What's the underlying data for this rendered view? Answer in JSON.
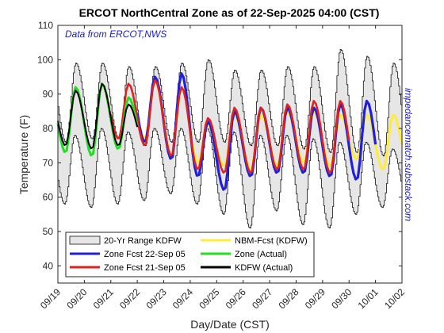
{
  "chart_data": {
    "type": "line",
    "title": "ERCOT NorthCentral Zone as of 22-Sep-2025 04:00 (CST)",
    "xlabel": "Day/Date (CST)",
    "ylabel": "Temperature (F)",
    "ylim": [
      35,
      110
    ],
    "yticks": [
      40,
      50,
      60,
      70,
      80,
      90,
      100,
      110
    ],
    "xlim": [
      0,
      13
    ],
    "xtick_labels": [
      "09/19",
      "09/20",
      "09/21",
      "09/22",
      "09/23",
      "09/24",
      "09/25",
      "09/26",
      "09/27",
      "09/28",
      "09/29",
      "09/30",
      "10/01",
      "10/02"
    ],
    "source_note": "Data from ERCOT,NWS",
    "watermark": "impedancematch.substack.com",
    "legend_position": "bottom-left",
    "grid": false,
    "range_band": {
      "name": "20-Yr Range KDFW",
      "color": "#e6e6e6",
      "days": [
        0,
        1,
        2,
        3,
        4,
        5,
        6,
        7,
        8,
        9,
        10,
        11,
        12
      ],
      "high_max": [
        99,
        99,
        98,
        98,
        99,
        100,
        97,
        97,
        98,
        98,
        103,
        101,
        99
      ],
      "high_min": [
        78,
        80,
        79,
        80,
        80,
        80,
        79,
        78,
        78,
        77,
        76,
        76,
        74
      ],
      "low_max": [
        76,
        77,
        77,
        75,
        76,
        76,
        76,
        75,
        75,
        74,
        73,
        73,
        72
      ],
      "low_min": [
        58,
        57,
        58,
        59,
        61,
        58,
        55,
        51,
        56,
        52,
        51,
        55,
        57
      ]
    },
    "series": [
      {
        "name": "NBM-Fcst (KDFW)",
        "color": "#ffeb3b",
        "days": [
          3,
          4,
          5,
          6,
          7,
          8,
          9,
          10,
          11,
          12
        ],
        "highs": [
          94,
          92,
          81,
          84,
          84,
          85,
          85,
          84,
          84,
          84
        ],
        "lows": [
          77,
          72,
          70,
          69,
          68,
          69,
          70,
          69,
          71,
          68
        ]
      },
      {
        "name": "Zone Fcst 22-Sep 05",
        "color": "#1f1fdc",
        "days": [
          3,
          4,
          5,
          6,
          7,
          8,
          9,
          10,
          11
        ],
        "highs": [
          95,
          96,
          82,
          85,
          86,
          86,
          86,
          87,
          88
        ],
        "lows": [
          76,
          71,
          66,
          62,
          66,
          67,
          67,
          66,
          65
        ]
      },
      {
        "name": "Zone Fcst 21-Sep 05",
        "color": "#dd2222",
        "days": [
          2,
          3,
          4,
          5,
          6,
          7,
          8,
          9,
          10
        ],
        "highs": [
          93,
          94,
          92,
          83,
          86,
          86,
          87,
          88,
          88
        ],
        "lows": [
          77,
          75,
          72,
          68,
          67,
          67,
          68,
          68,
          67
        ]
      },
      {
        "name": "Zone (Actual)",
        "color": "#22dd22",
        "days": [
          0,
          1,
          2
        ],
        "highs": [
          92,
          93,
          89
        ],
        "lows": [
          73,
          72,
          74
        ]
      },
      {
        "name": "KDFW (Actual)",
        "color": "#000000",
        "days": [
          0,
          1,
          2
        ],
        "highs": [
          91,
          93,
          87
        ],
        "lows": [
          75,
          74,
          75
        ]
      }
    ]
  }
}
